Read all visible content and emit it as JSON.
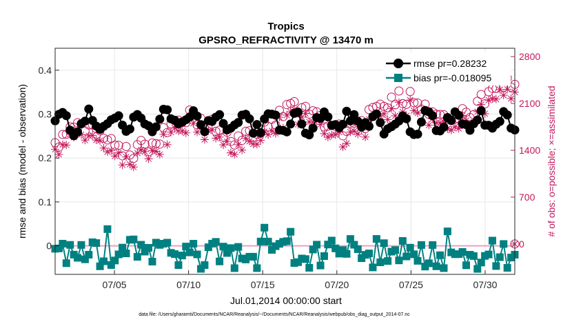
{
  "chart_data": {
    "type": "line",
    "title": "Tropics",
    "subtitle": "GPSRO_REFRACTIVITY @ 13470 m",
    "xlabel": "Jul.01,2014 00:00:00 start",
    "ylabel_left": "rmse and bias (model - observation)",
    "ylabel_right": "# of obs: o=possible; ×=assimilated",
    "footnote": "data file: /Users/gharamti/Documents/NCAR/Reanalysis/~/Documents/NCAR/Reanalysis/webpub/obs_diag_output_2014-07.nc",
    "xlim": [
      1,
      32
    ],
    "ylim_left": [
      -0.065,
      0.45
    ],
    "ylim_right": [
      -455,
      2925
    ],
    "x_ticks": [
      5,
      10,
      15,
      20,
      25,
      30
    ],
    "x_tick_labels": [
      "07/05",
      "07/10",
      "07/15",
      "07/20",
      "07/25",
      "07/30"
    ],
    "y_left_ticks": [
      0,
      0.1,
      0.2,
      0.3,
      0.4
    ],
    "y_left_tick_labels": [
      "0",
      "0.1",
      "0.2",
      "0.3",
      "0.4"
    ],
    "y_right_ticks": [
      0,
      700,
      1400,
      2100,
      2800
    ],
    "y_right_tick_labels": [
      "0",
      "700",
      "1400",
      "2100",
      "2800"
    ],
    "grid": true,
    "legend_placement": "top-right",
    "series": [
      {
        "name": "rmse",
        "legend_label": "rmse pr=0.28232",
        "color": "#000000",
        "axis": "left",
        "marker": "circle",
        "summary": {
          "mean": 0.28232,
          "min": 0.26,
          "max": 0.32
        }
      },
      {
        "name": "bias",
        "legend_label": "bias pr=-0.018095",
        "color": "#008080",
        "axis": "left",
        "marker": "square",
        "summary": {
          "mean": -0.018095,
          "min": -0.07,
          "max": 0.04
        }
      },
      {
        "name": "possible obs",
        "color": "#c2185b",
        "axis": "right",
        "marker": "open-circle",
        "summary": {
          "min": 1150,
          "max": 2500
        }
      },
      {
        "name": "assimilated obs",
        "color": "#c2185b",
        "axis": "right",
        "marker": "asterisk",
        "summary": {
          "min": 1150,
          "max": 2480
        }
      }
    ],
    "zero_line_color": "#e8a0c0"
  }
}
